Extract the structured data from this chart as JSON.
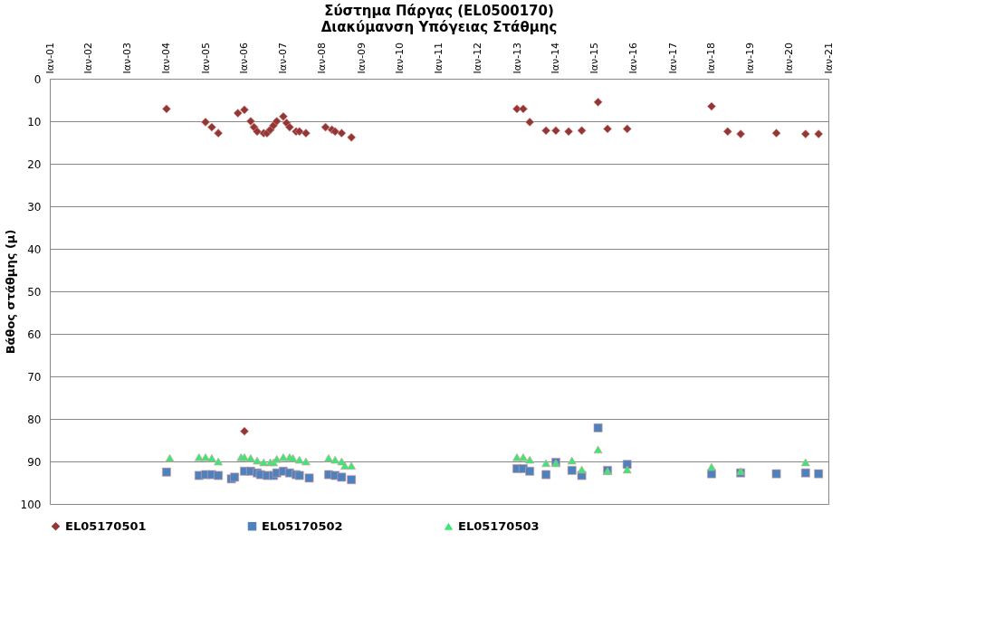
{
  "chart_data": {
    "type": "scatter",
    "title": "Σύστημα Πάργας (EL0500170)",
    "subtitle": "Διακύμανση Υπόγειας Στάθμης",
    "ylabel": "Βάθος στάθμης (μ)",
    "xlim": [
      "2001-01",
      "2021-01"
    ],
    "xticks": [
      {
        "value": "2001-01",
        "label": "Ιαν-01"
      },
      {
        "value": "2002-01",
        "label": "Ιαν-02"
      },
      {
        "value": "2003-01",
        "label": "Ιαν-03"
      },
      {
        "value": "2004-01",
        "label": "Ιαν-04"
      },
      {
        "value": "2005-01",
        "label": "Ιαν-05"
      },
      {
        "value": "2006-01",
        "label": "Ιαν-06"
      },
      {
        "value": "2007-01",
        "label": "Ιαν-07"
      },
      {
        "value": "2008-01",
        "label": "Ιαν-08"
      },
      {
        "value": "2009-01",
        "label": "Ιαν-09"
      },
      {
        "value": "2010-01",
        "label": "Ιαν-10"
      },
      {
        "value": "2011-01",
        "label": "Ιαν-11"
      },
      {
        "value": "2012-01",
        "label": "Ιαν-12"
      },
      {
        "value": "2013-01",
        "label": "Ιαν-13"
      },
      {
        "value": "2014-01",
        "label": "Ιαν-14"
      },
      {
        "value": "2015-01",
        "label": "Ιαν-15"
      },
      {
        "value": "2016-01",
        "label": "Ιαν-16"
      },
      {
        "value": "2017-01",
        "label": "Ιαν-17"
      },
      {
        "value": "2018-01",
        "label": "Ιαν-18"
      },
      {
        "value": "2019-01",
        "label": "Ιαν-19"
      },
      {
        "value": "2020-01",
        "label": "Ιαν-20"
      },
      {
        "value": "2021-01",
        "label": "Ιαν-21"
      }
    ],
    "ylim": [
      100,
      0
    ],
    "yticks": [
      0,
      10,
      20,
      30,
      40,
      50,
      60,
      70,
      80,
      90,
      100
    ],
    "grid": "y",
    "legend": "bottom",
    "series": [
      {
        "name": "EL05170501",
        "color": "#943634",
        "marker": "diamond",
        "x": [
          "2004-01",
          "2005-01",
          "2005-03",
          "2005-05",
          "2005-11",
          "2006-01",
          "2006-01",
          "2006-03",
          "2006-04",
          "2006-05",
          "2006-07",
          "2006-08",
          "2006-09",
          "2006-10",
          "2006-11",
          "2007-01",
          "2007-02",
          "2007-03",
          "2007-05",
          "2007-06",
          "2007-08",
          "2008-02",
          "2008-04",
          "2008-05",
          "2008-07",
          "2008-10",
          "2013-01",
          "2013-03",
          "2013-05",
          "2013-10",
          "2014-01",
          "2014-05",
          "2014-09",
          "2015-02",
          "2015-05",
          "2015-11",
          "2018-01",
          "2018-06",
          "2018-10",
          "2019-09",
          "2020-06",
          "2020-10"
        ],
        "values": [
          7.1,
          10.2,
          11.4,
          12.8,
          8.1,
          7.3,
          82.9,
          10.0,
          11.4,
          12.4,
          12.8,
          12.8,
          12.0,
          11.0,
          10.0,
          8.9,
          10.4,
          11.4,
          12.4,
          12.4,
          12.8,
          11.4,
          12.0,
          12.4,
          12.8,
          13.8,
          7.1,
          7.1,
          10.2,
          12.2,
          12.2,
          12.4,
          12.2,
          5.5,
          11.8,
          11.8,
          6.5,
          12.4,
          13.0,
          12.8,
          13.0,
          13.0
        ]
      },
      {
        "name": "EL05170502",
        "color": "#4f81bd",
        "marker": "square",
        "x": [
          "2004-01",
          "2004-11",
          "2005-01",
          "2005-03",
          "2005-05",
          "2005-09",
          "2005-10",
          "2006-01",
          "2006-03",
          "2006-05",
          "2006-06",
          "2006-08",
          "2006-10",
          "2006-11",
          "2007-01",
          "2007-03",
          "2007-05",
          "2007-06",
          "2007-09",
          "2008-03",
          "2008-05",
          "2008-07",
          "2008-10",
          "2013-01",
          "2013-03",
          "2013-05",
          "2013-10",
          "2014-01",
          "2014-06",
          "2014-09",
          "2015-02",
          "2015-05",
          "2015-11",
          "2018-01",
          "2018-10",
          "2019-09",
          "2020-06",
          "2020-10"
        ],
        "values": [
          92.5,
          93.3,
          93.1,
          93.1,
          93.3,
          94.1,
          93.7,
          92.3,
          92.3,
          92.7,
          93.1,
          93.3,
          93.3,
          92.7,
          92.3,
          92.7,
          93.1,
          93.3,
          93.9,
          93.1,
          93.3,
          93.7,
          94.3,
          91.7,
          91.7,
          92.3,
          93.1,
          90.2,
          92.1,
          93.3,
          82.1,
          92.1,
          90.7,
          92.9,
          92.7,
          92.9,
          92.7,
          92.9
        ]
      },
      {
        "name": "EL05170503",
        "color": "#3ee677",
        "marker": "triangle",
        "x": [
          "2004-02",
          "2004-11",
          "2005-01",
          "2005-03",
          "2005-05",
          "2005-12",
          "2006-01",
          "2006-03",
          "2006-05",
          "2006-07",
          "2006-09",
          "2006-10",
          "2006-11",
          "2007-01",
          "2007-03",
          "2007-04",
          "2007-06",
          "2007-08",
          "2008-03",
          "2008-05",
          "2008-07",
          "2008-08",
          "2008-10",
          "2013-01",
          "2013-03",
          "2013-05",
          "2013-10",
          "2014-01",
          "2014-06",
          "2014-09",
          "2015-02",
          "2015-05",
          "2015-11",
          "2018-01",
          "2018-10",
          "2020-06"
        ],
        "values": [
          89.2,
          89.0,
          89.0,
          89.2,
          90.0,
          89.0,
          89.0,
          89.2,
          89.8,
          90.2,
          90.2,
          90.2,
          89.4,
          89.0,
          89.0,
          89.2,
          89.6,
          90.0,
          89.2,
          89.6,
          90.0,
          91.0,
          91.0,
          89.0,
          89.0,
          89.6,
          90.4,
          90.4,
          89.8,
          91.9,
          87.2,
          92.3,
          91.9,
          91.3,
          92.3,
          90.2
        ]
      }
    ]
  }
}
